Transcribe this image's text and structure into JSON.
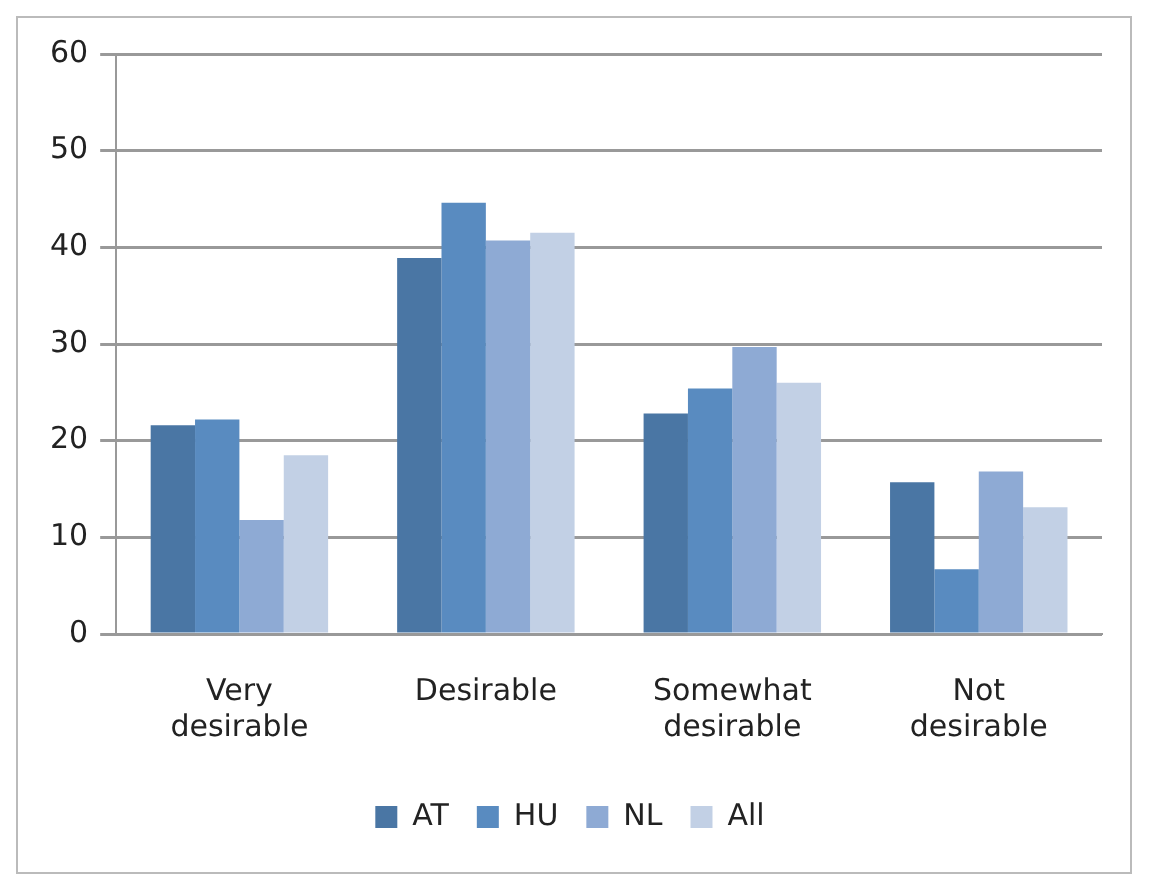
{
  "chart_data": {
    "type": "bar",
    "categories": [
      "Very desirable",
      "Desirable",
      "Somewhat desirable",
      "Not desirable"
    ],
    "series": [
      {
        "name": "AT",
        "color": "#4a76a4",
        "values": [
          21.6,
          38.9,
          22.8,
          15.7
        ]
      },
      {
        "name": "HU",
        "color": "#598bc0",
        "values": [
          22.2,
          44.6,
          25.4,
          6.7
        ]
      },
      {
        "name": "NL",
        "color": "#8eaad4",
        "values": [
          11.8,
          40.7,
          29.7,
          16.8
        ]
      },
      {
        "name": "All",
        "color": "#c2d0e5",
        "values": [
          18.5,
          41.5,
          26,
          13.1
        ]
      }
    ],
    "ylim": [
      0,
      60
    ],
    "yticks": [
      0,
      10,
      20,
      30,
      40,
      50,
      60
    ],
    "grid": "y",
    "legend": "bottom"
  }
}
